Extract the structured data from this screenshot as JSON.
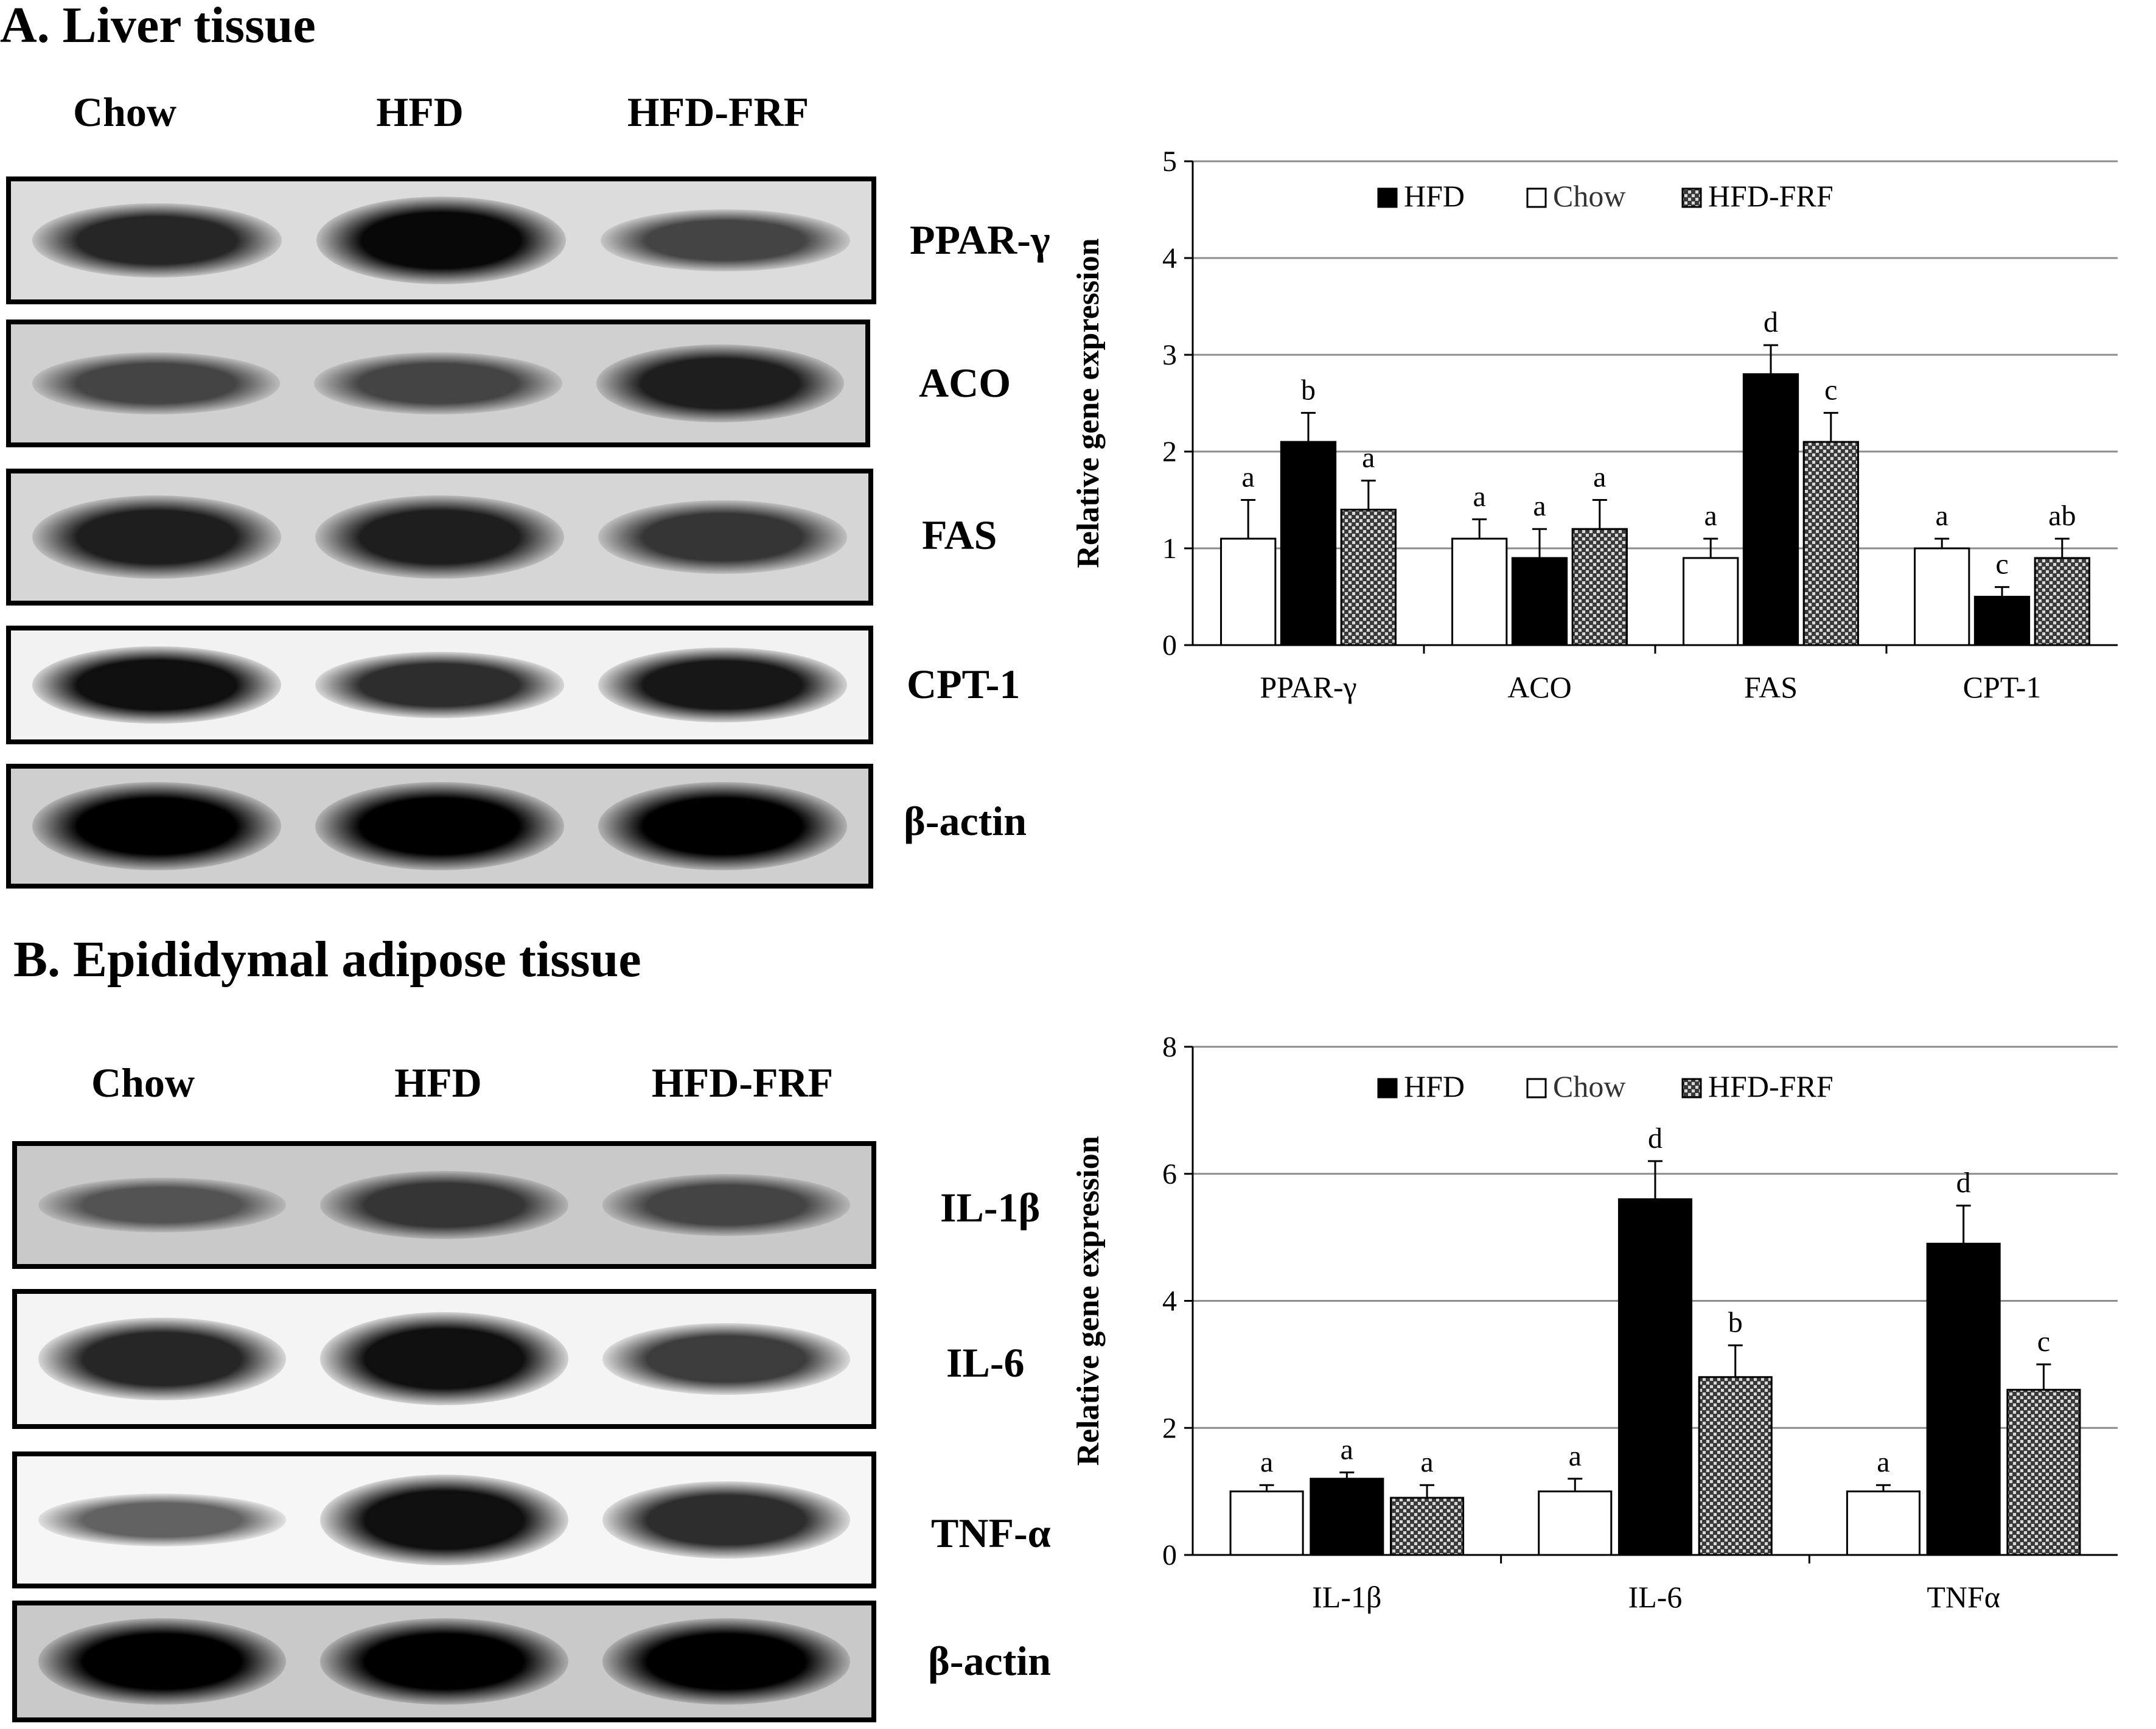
{
  "panels": [
    {
      "title": "A. Liver tissue",
      "blot": {
        "lanes": [
          "Chow",
          "HFD",
          "HFD-FRF"
        ],
        "rows": [
          {
            "protein": "PPAR-γ",
            "intensity": [
              0.75,
              0.95,
              0.55
            ]
          },
          {
            "protein": "ACO",
            "intensity": [
              0.55,
              0.55,
              0.8
            ]
          },
          {
            "protein": "FAS",
            "intensity": [
              0.8,
              0.8,
              0.65
            ]
          },
          {
            "protein": "CPT-1",
            "intensity": [
              0.9,
              0.7,
              0.85
            ]
          },
          {
            "protein": "β-actin",
            "intensity": [
              1.0,
              1.0,
              1.0
            ]
          }
        ]
      }
    },
    {
      "title": "B. Epididymal adipose tissue",
      "blot": {
        "lanes": [
          "Chow",
          "HFD",
          "HFD-FRF"
        ],
        "rows": [
          {
            "protein": "IL-1β",
            "intensity": [
              0.45,
              0.65,
              0.55
            ]
          },
          {
            "protein": "IL-6",
            "intensity": [
              0.75,
              0.9,
              0.6
            ]
          },
          {
            "protein": "TNF-α",
            "intensity": [
              0.35,
              0.9,
              0.7
            ]
          },
          {
            "protein": "β-actin",
            "intensity": [
              1.0,
              1.0,
              1.0
            ]
          }
        ]
      }
    }
  ],
  "chart_data": [
    {
      "type": "bar",
      "title": "",
      "xlabel": "",
      "ylabel": "Relative gene expression",
      "ylim": [
        0,
        5
      ],
      "yticks": [
        0,
        1,
        2,
        3,
        4,
        5
      ],
      "grid": true,
      "legend_position": "top-right",
      "categories": [
        "PPAR-γ",
        "ACO",
        "FAS",
        "CPT-1"
      ],
      "series": [
        {
          "name": "Chow",
          "style": "white",
          "values": [
            1.1,
            1.1,
            0.9,
            1.0
          ],
          "errors": [
            0.4,
            0.2,
            0.2,
            0.1
          ],
          "letters": [
            "a",
            "a",
            "a",
            "a"
          ]
        },
        {
          "name": "HFD",
          "style": "black",
          "values": [
            2.1,
            0.9,
            2.8,
            0.5
          ],
          "errors": [
            0.3,
            0.3,
            0.3,
            0.1
          ],
          "letters": [
            "b",
            "a",
            "d",
            "c"
          ]
        },
        {
          "name": "HFD-FRF",
          "style": "hatched",
          "values": [
            1.4,
            1.2,
            2.1,
            0.9
          ],
          "errors": [
            0.3,
            0.3,
            0.3,
            0.2
          ],
          "letters": [
            "a",
            "a",
            "c",
            "ab"
          ]
        }
      ]
    },
    {
      "type": "bar",
      "title": "",
      "xlabel": "",
      "ylabel": "Relative gene expression",
      "ylim": [
        0,
        8
      ],
      "yticks": [
        0,
        2,
        4,
        6,
        8
      ],
      "grid": true,
      "legend_position": "top-right",
      "categories": [
        "IL-1β",
        "IL-6",
        "TNFα"
      ],
      "series": [
        {
          "name": "Chow",
          "style": "white",
          "values": [
            1.0,
            1.0,
            1.0
          ],
          "errors": [
            0.1,
            0.2,
            0.1
          ],
          "letters": [
            "a",
            "a",
            "a"
          ]
        },
        {
          "name": "HFD",
          "style": "black",
          "values": [
            1.2,
            5.6,
            4.9
          ],
          "errors": [
            0.1,
            0.6,
            0.6
          ],
          "letters": [
            "a",
            "d",
            "d"
          ]
        },
        {
          "name": "HFD-FRF",
          "style": "hatched",
          "values": [
            0.9,
            2.8,
            2.6
          ],
          "errors": [
            0.2,
            0.5,
            0.4
          ],
          "letters": [
            "a",
            "b",
            "c"
          ]
        }
      ]
    }
  ]
}
